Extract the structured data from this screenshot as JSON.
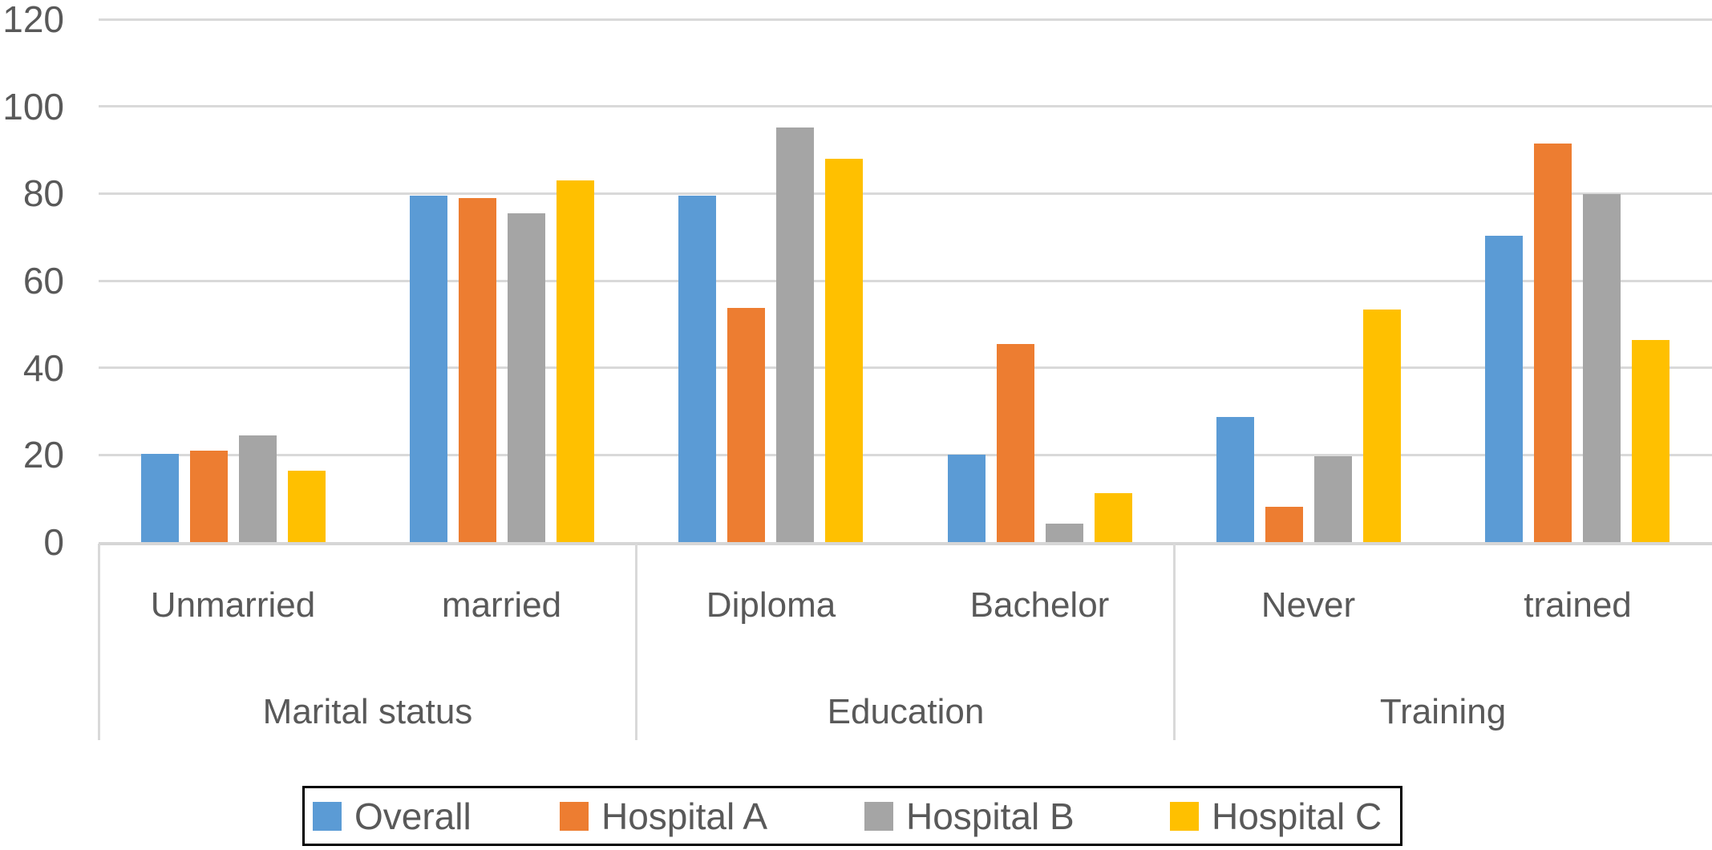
{
  "chart_data": {
    "type": "bar",
    "title": "",
    "xlabel": "",
    "ylabel": "",
    "ylim": [
      0,
      120
    ],
    "yticks": [
      0,
      20,
      40,
      60,
      80,
      100,
      120
    ],
    "grid": true,
    "legend_position": "bottom-boxed",
    "categories": [
      "Unmarried",
      "married",
      "Diploma",
      "Bachelor",
      "Never",
      "trained"
    ],
    "groups": [
      {
        "label": "Marital status",
        "span": [
          "Unmarried",
          "married"
        ]
      },
      {
        "label": "Education",
        "span": [
          "Diploma",
          "Bachelor"
        ]
      },
      {
        "label": "Training",
        "span": [
          "Never",
          "trained"
        ]
      }
    ],
    "series": [
      {
        "name": "Overall",
        "color": "#5B9BD5",
        "values": [
          20.3,
          79.5,
          79.5,
          20.1,
          28.8,
          70.3
        ]
      },
      {
        "name": "Hospital A",
        "color": "#ED7D31",
        "values": [
          20.9,
          79.0,
          53.8,
          45.4,
          8.1,
          91.5
        ]
      },
      {
        "name": "Hospital B",
        "color": "#A5A5A5",
        "values": [
          24.4,
          75.4,
          95.1,
          4.3,
          19.7,
          79.8
        ]
      },
      {
        "name": "Hospital C",
        "color": "#FFC000",
        "values": [
          16.4,
          83.0,
          88.0,
          11.3,
          53.3,
          46.3
        ]
      }
    ]
  },
  "colors": {
    "text": "#595959",
    "gridline": "#D9D9D9",
    "legend_border": "#000000",
    "background": "#FFFFFF"
  }
}
